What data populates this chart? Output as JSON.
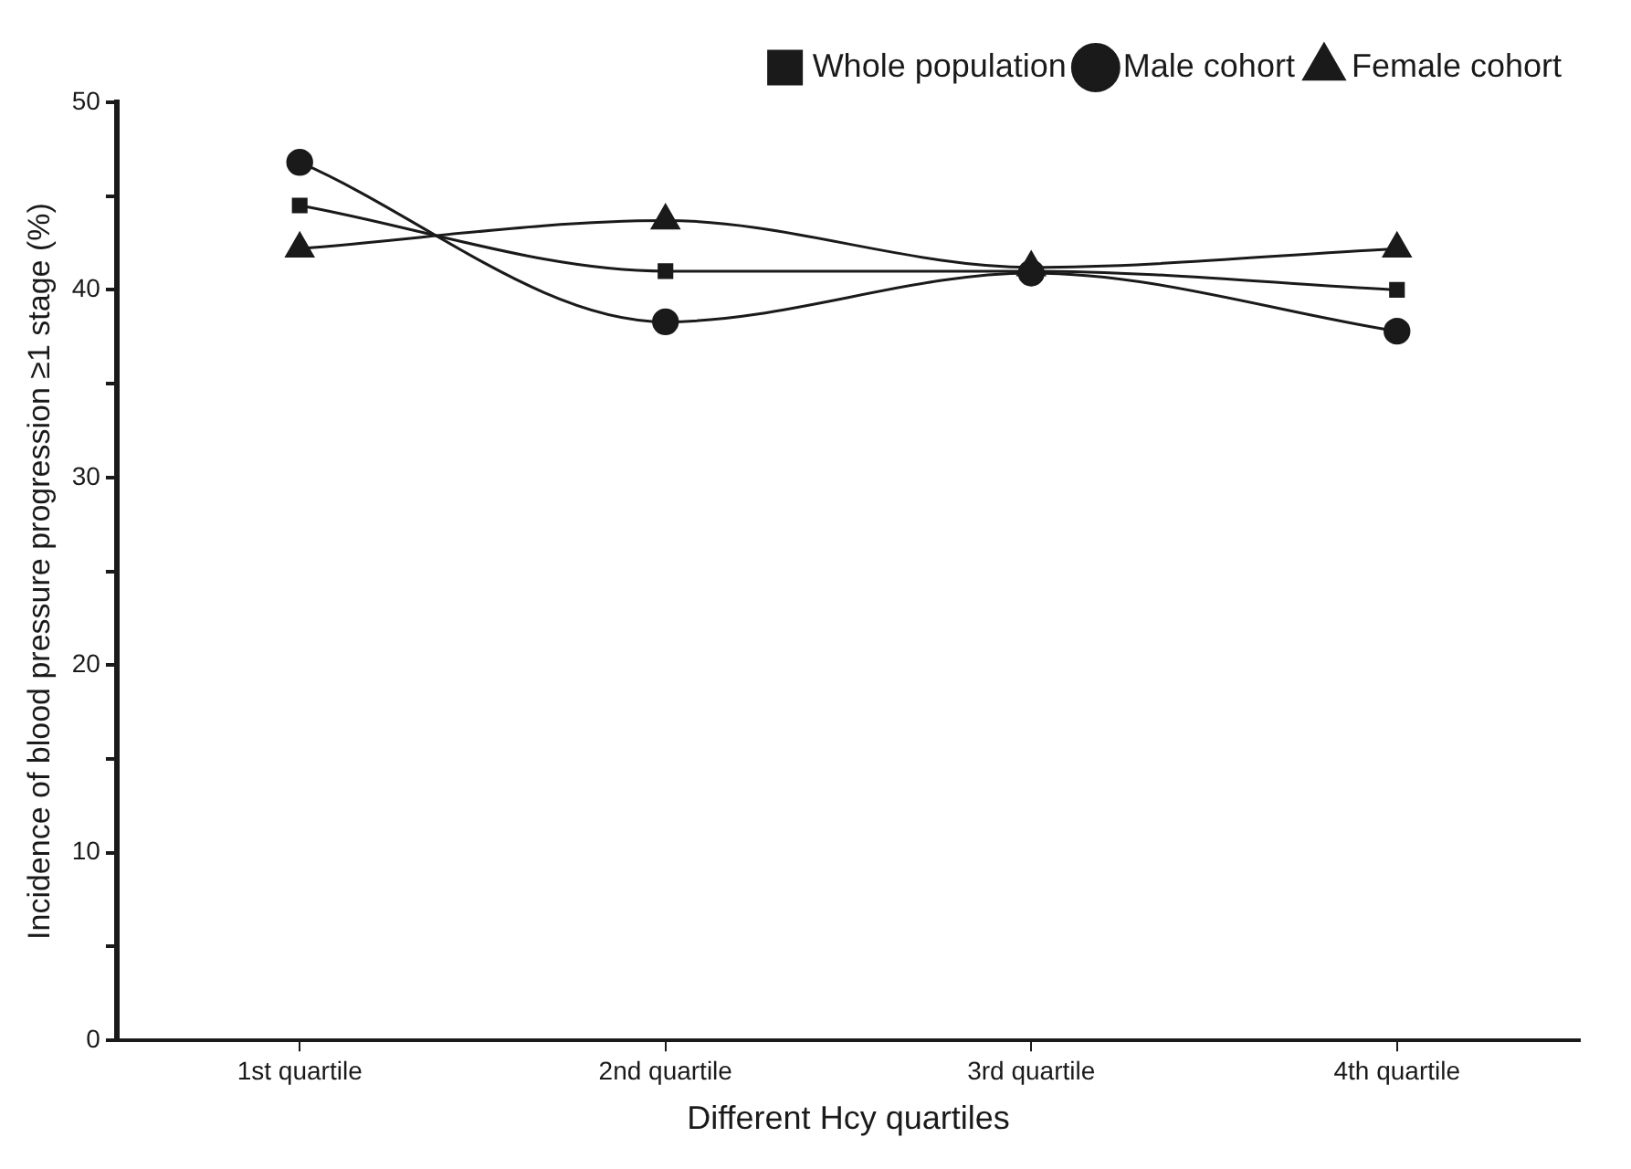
{
  "chart_data": {
    "type": "line",
    "xlabel": "Different Hcy quartiles",
    "ylabel": "Incidence of blood pressure progression ≥1 stage (%)",
    "categories": [
      "1st quartile",
      "2nd quartile",
      "3rd quartile",
      "4th quartile"
    ],
    "series": [
      {
        "name": "Whole population",
        "color": "#1a1a1a",
        "marker": "square",
        "values": [
          44.5,
          41.0,
          41.0,
          40.0
        ]
      },
      {
        "name": "Male cohort",
        "color": "#1a1a1a",
        "marker": "circle",
        "values": [
          46.8,
          38.3,
          40.9,
          37.8
        ]
      },
      {
        "name": "Female cohort",
        "color": "#1a1a1a",
        "marker": "triangle",
        "values": [
          42.2,
          43.7,
          41.2,
          42.2
        ]
      }
    ],
    "ylim": [
      0,
      50
    ],
    "yticks": [
      0,
      {
        "value": 5,
        "label": null
      },
      10,
      {
        "value": 15,
        "label": null
      },
      20,
      {
        "value": 25,
        "label": null
      },
      30,
      {
        "value": 35,
        "label": null
      },
      40,
      {
        "value": 45,
        "label": null
      },
      50
    ],
    "grid": false,
    "legend": "top right",
    "line_style": "solid"
  }
}
